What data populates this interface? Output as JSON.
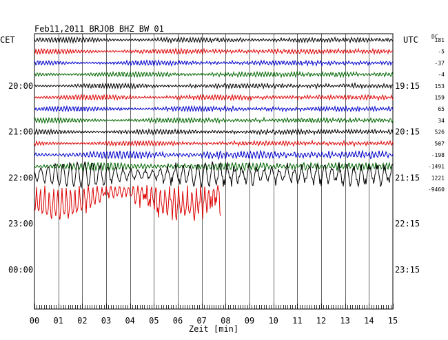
{
  "header": {
    "title": "Feb11,2011   BRJOB BHZ BW 01",
    "left_zone": "CET",
    "right_zone": "UTC",
    "dc_label": "DC"
  },
  "chart_data": {
    "type": "line",
    "title": "Feb11,2011   BRJOB BHZ BW 01",
    "xlabel": "Zeit [min]",
    "xlim": [
      0,
      15
    ],
    "x_ticks": [
      "00",
      "01",
      "02",
      "03",
      "04",
      "05",
      "06",
      "07",
      "08",
      "09",
      "10",
      "11",
      "12",
      "13",
      "14",
      "15"
    ],
    "hour_labels_cet": [
      "20:00",
      "21:00",
      "22:00",
      "23:00",
      "00:00"
    ],
    "hour_labels_utc": [
      "19:15",
      "20:15",
      "21:15",
      "22:15",
      "23:15"
    ],
    "dc_offsets": [
      "181",
      "-5",
      "-37",
      "-4",
      "153",
      "159",
      "65",
      "34",
      "526",
      "507",
      "-198",
      "-1491",
      "1221",
      "-9460"
    ],
    "series_colors": [
      "#000000",
      "#dd0000",
      "#0000cc",
      "#006600"
    ],
    "traces": [
      {
        "color": "#000000",
        "amplitude": "low",
        "minutes": 15
      },
      {
        "color": "#dd0000",
        "amplitude": "low",
        "minutes": 15
      },
      {
        "color": "#0000cc",
        "amplitude": "low",
        "minutes": 15
      },
      {
        "color": "#006600",
        "amplitude": "low",
        "minutes": 15
      },
      {
        "color": "#000000",
        "amplitude": "low",
        "minutes": 15
      },
      {
        "color": "#dd0000",
        "amplitude": "low",
        "minutes": 15
      },
      {
        "color": "#0000cc",
        "amplitude": "low",
        "minutes": 15
      },
      {
        "color": "#006600",
        "amplitude": "low",
        "minutes": 15
      },
      {
        "color": "#000000",
        "amplitude": "low",
        "minutes": 15
      },
      {
        "color": "#dd0000",
        "amplitude": "low",
        "minutes": 15
      },
      {
        "color": "#0000cc",
        "amplitude": "medium",
        "minutes": 15
      },
      {
        "color": "#006600",
        "amplitude": "medium",
        "minutes": 15
      },
      {
        "color": "#000000",
        "amplitude": "high",
        "minutes": 15
      },
      {
        "color": "#dd0000",
        "amplitude": "very high",
        "minutes": 7.8
      }
    ],
    "grid": true
  }
}
